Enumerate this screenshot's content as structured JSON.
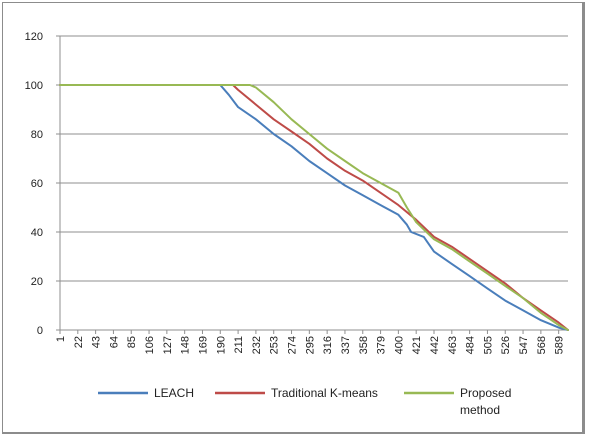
{
  "chart_data": {
    "type": "line",
    "title": "",
    "xlabel": "",
    "ylabel": "",
    "ylim": [
      0,
      120
    ],
    "yticks": [
      0,
      20,
      40,
      60,
      80,
      100,
      120
    ],
    "xlim": [
      1,
      600
    ],
    "x_tick_labels": [
      "1",
      "22",
      "43",
      "64",
      "85",
      "106",
      "127",
      "148",
      "169",
      "190",
      "211",
      "232",
      "253",
      "274",
      "295",
      "316",
      "337",
      "358",
      "379",
      "400",
      "421",
      "442",
      "463",
      "484",
      "505",
      "526",
      "547",
      "568",
      "589"
    ],
    "grid": "horizontal",
    "legend_position": "bottom",
    "series": [
      {
        "name": "LEACH",
        "color": "#4a7ebb",
        "points": [
          [
            1,
            100
          ],
          [
            190,
            100
          ],
          [
            200,
            96
          ],
          [
            211,
            91
          ],
          [
            232,
            86
          ],
          [
            253,
            80
          ],
          [
            274,
            75
          ],
          [
            295,
            69
          ],
          [
            316,
            64
          ],
          [
            337,
            59
          ],
          [
            358,
            55
          ],
          [
            379,
            51
          ],
          [
            400,
            47
          ],
          [
            410,
            43
          ],
          [
            415,
            40
          ],
          [
            430,
            38
          ],
          [
            442,
            32
          ],
          [
            463,
            27
          ],
          [
            484,
            22
          ],
          [
            505,
            17
          ],
          [
            526,
            12
          ],
          [
            547,
            8
          ],
          [
            568,
            4
          ],
          [
            589,
            1
          ],
          [
            600,
            0
          ]
        ]
      },
      {
        "name": "Traditional K-means",
        "color": "#be4b48",
        "points": [
          [
            1,
            100
          ],
          [
            205,
            100
          ],
          [
            211,
            98
          ],
          [
            232,
            92
          ],
          [
            253,
            86
          ],
          [
            274,
            81
          ],
          [
            295,
            76
          ],
          [
            316,
            70
          ],
          [
            337,
            65
          ],
          [
            358,
            61
          ],
          [
            379,
            56
          ],
          [
            400,
            51
          ],
          [
            421,
            45
          ],
          [
            442,
            38
          ],
          [
            463,
            34
          ],
          [
            484,
            29
          ],
          [
            505,
            24
          ],
          [
            526,
            19
          ],
          [
            547,
            13
          ],
          [
            568,
            8
          ],
          [
            589,
            3
          ],
          [
            600,
            0
          ]
        ]
      },
      {
        "name": "Proposed method",
        "color": "#98b954",
        "points": [
          [
            1,
            100
          ],
          [
            225,
            100
          ],
          [
            232,
            99
          ],
          [
            253,
            93
          ],
          [
            274,
            86
          ],
          [
            295,
            80
          ],
          [
            316,
            74
          ],
          [
            337,
            69
          ],
          [
            358,
            64
          ],
          [
            379,
            60
          ],
          [
            400,
            56
          ],
          [
            410,
            50
          ],
          [
            421,
            44
          ],
          [
            442,
            37
          ],
          [
            463,
            33
          ],
          [
            484,
            28
          ],
          [
            505,
            23
          ],
          [
            526,
            18
          ],
          [
            547,
            13
          ],
          [
            568,
            7
          ],
          [
            589,
            2
          ],
          [
            600,
            0
          ]
        ]
      }
    ],
    "legend": [
      {
        "label": "LEACH",
        "color": "#4a7ebb"
      },
      {
        "label": "Traditional K-means",
        "color": "#be4b48"
      },
      {
        "label": "Proposed",
        "label2": "method",
        "color": "#98b954"
      }
    ]
  }
}
